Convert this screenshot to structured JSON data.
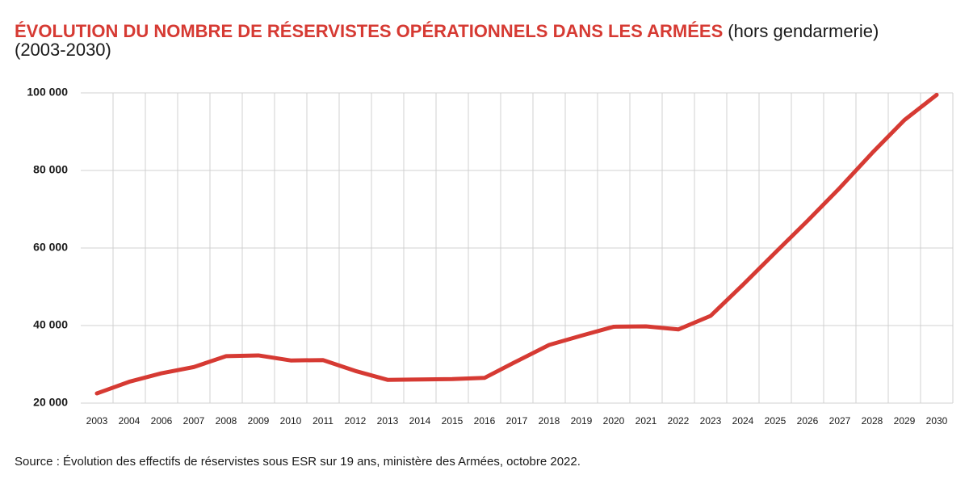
{
  "chart_data": {
    "type": "line",
    "title": "ÉVOLUTION DU NOMBRE DE RÉSERVISTES OPÉRATIONNELS DANS LES ARMÉES",
    "subtitle": "(hors gendarmerie)",
    "period": "(2003-2030)",
    "source": "Source : Évolution des effectifs de réservistes sous ESR sur 19 ans, ministère des Armées, octobre 2022.",
    "categories": [
      "2003",
      "2004",
      "2006",
      "2007",
      "2008",
      "2009",
      "2010",
      "2011",
      "2012",
      "2013",
      "2014",
      "2015",
      "2016",
      "2017",
      "2018",
      "2019",
      "2020",
      "2021",
      "2022",
      "2023",
      "2024",
      "2025",
      "2026",
      "2027",
      "2028",
      "2029",
      "2030"
    ],
    "series": [
      {
        "name": "Réservistes opérationnels",
        "color": "#d63a33",
        "values": [
          22500,
          25500,
          27700,
          29300,
          32100,
          32300,
          31000,
          31100,
          28300,
          26000,
          26100,
          26200,
          26500,
          30800,
          35000,
          37400,
          39700,
          39800,
          39000,
          42500,
          50500,
          58800,
          67000,
          75500,
          84500,
          93000,
          99500
        ]
      }
    ],
    "ylim": [
      20000,
      100000
    ],
    "yticks": [
      {
        "value": 20000,
        "label": "20 000"
      },
      {
        "value": 40000,
        "label": "40 000"
      },
      {
        "value": 60000,
        "label": "60 000"
      },
      {
        "value": 80000,
        "label": "80 000"
      },
      {
        "value": 100000,
        "label": "100 000"
      }
    ],
    "grid": true,
    "title_color": "#d63a33"
  }
}
